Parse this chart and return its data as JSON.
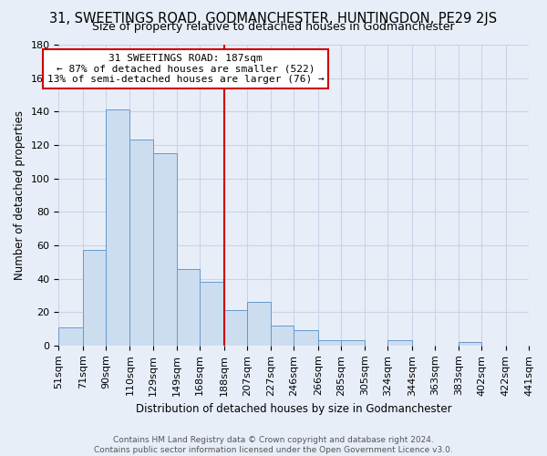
{
  "title": "31, SWEETINGS ROAD, GODMANCHESTER, HUNTINGDON, PE29 2JS",
  "subtitle": "Size of property relative to detached houses in Godmanchester",
  "xlabel": "Distribution of detached houses by size in Godmanchester",
  "ylabel": "Number of detached properties",
  "bar_values": [
    11,
    57,
    141,
    123,
    115,
    46,
    38,
    21,
    26,
    12,
    9,
    3,
    3,
    0,
    3,
    0,
    0,
    2,
    0,
    0
  ],
  "bin_edges": [
    51,
    71,
    90,
    110,
    129,
    149,
    168,
    188,
    207,
    227,
    246,
    266,
    285,
    305,
    324,
    344,
    363,
    383,
    402,
    422,
    441
  ],
  "bin_labels": [
    "51sqm",
    "71sqm",
    "90sqm",
    "110sqm",
    "129sqm",
    "149sqm",
    "168sqm",
    "188sqm",
    "207sqm",
    "227sqm",
    "246sqm",
    "266sqm",
    "285sqm",
    "305sqm",
    "324sqm",
    "344sqm",
    "363sqm",
    "383sqm",
    "402sqm",
    "422sqm",
    "441sqm"
  ],
  "bar_color": "#ccddf0",
  "bar_edge_color": "#6699cc",
  "reference_line_x": 188,
  "reference_line_color": "#cc0000",
  "annotation_title": "31 SWEETINGS ROAD: 187sqm",
  "annotation_line1": "← 87% of detached houses are smaller (522)",
  "annotation_line2": "13% of semi-detached houses are larger (76) →",
  "annotation_box_facecolor": "#ffffff",
  "annotation_box_edgecolor": "#cc0000",
  "footer_line1": "Contains HM Land Registry data © Crown copyright and database right 2024.",
  "footer_line2": "Contains public sector information licensed under the Open Government Licence v3.0.",
  "background_color": "#e8eef8",
  "grid_color": "#c8d4e8",
  "ylim": [
    0,
    180
  ],
  "yticks": [
    0,
    20,
    40,
    60,
    80,
    100,
    120,
    140,
    160,
    180
  ],
  "title_fontsize": 10.5,
  "subtitle_fontsize": 9,
  "axis_label_fontsize": 8.5,
  "tick_fontsize": 8,
  "footer_fontsize": 6.5
}
